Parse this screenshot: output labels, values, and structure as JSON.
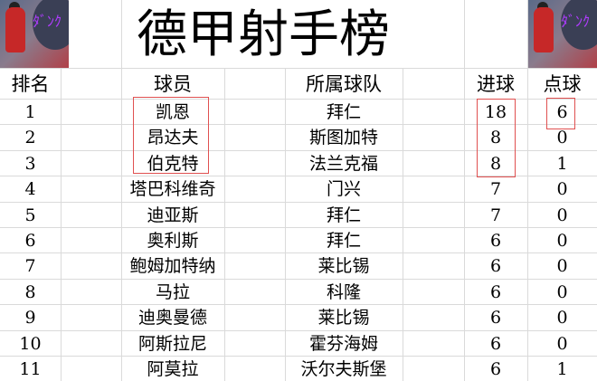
{
  "title": "德甲射手榜",
  "headers": {
    "rank": "排名",
    "player": "球员",
    "team": "所属球队",
    "goals": "进球",
    "penalties": "点球"
  },
  "rows": [
    {
      "rank": "1",
      "player": "凯恩",
      "team": "拜仁",
      "goals": "18",
      "penalties": "6"
    },
    {
      "rank": "2",
      "player": "昂达夫",
      "team": "斯图加特",
      "goals": "8",
      "penalties": "0"
    },
    {
      "rank": "3",
      "player": "伯克特",
      "team": "法兰克福",
      "goals": "8",
      "penalties": "1"
    },
    {
      "rank": "4",
      "player": "塔巴科维奇",
      "team": "门兴",
      "goals": "7",
      "penalties": "0"
    },
    {
      "rank": "5",
      "player": "迪亚斯",
      "team": "拜仁",
      "goals": "7",
      "penalties": "0"
    },
    {
      "rank": "6",
      "player": "奥利斯",
      "team": "拜仁",
      "goals": "6",
      "penalties": "0"
    },
    {
      "rank": "7",
      "player": "鲍姆加特纳",
      "team": "莱比锡",
      "goals": "6",
      "penalties": "0"
    },
    {
      "rank": "8",
      "player": "马拉",
      "team": "科隆",
      "goals": "6",
      "penalties": "0"
    },
    {
      "rank": "9",
      "player": "迪奥曼德",
      "team": "莱比锡",
      "goals": "6",
      "penalties": "0"
    },
    {
      "rank": "10",
      "player": "阿斯拉尼",
      "team": "霍芬海姆",
      "goals": "6",
      "penalties": "0"
    },
    {
      "rank": "11",
      "player": "阿莫拉",
      "team": "沃尔夫斯堡",
      "goals": "6",
      "penalties": "1"
    }
  ],
  "highlight_color": "#e05050"
}
